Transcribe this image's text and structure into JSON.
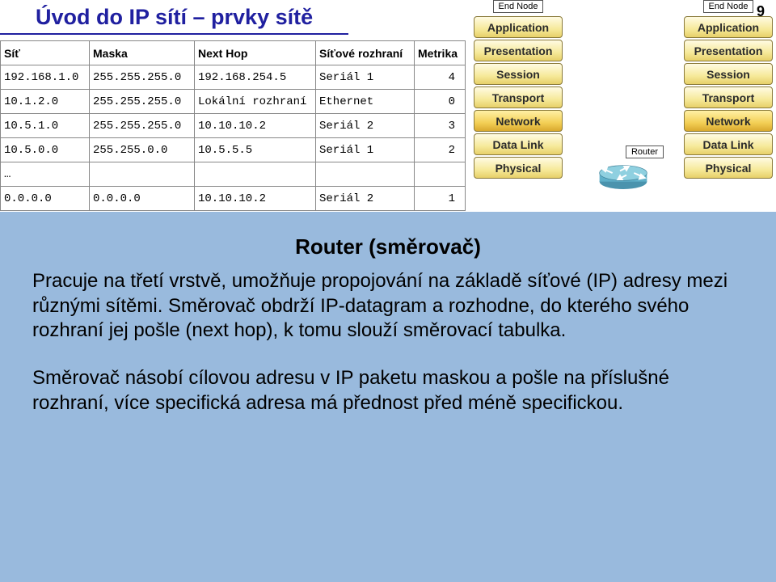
{
  "page": {
    "title": "Úvod do IP sítí – prvky sítě",
    "number": "9"
  },
  "routing_table": {
    "columns": [
      "Síť",
      "Maska",
      "Next Hop",
      "Síťové rozhraní",
      "Metrika"
    ],
    "col_widths": [
      "110px",
      "130px",
      "150px",
      "122px",
      "63px"
    ],
    "rows": [
      [
        "192.168.1.0",
        "255.255.255.0",
        "192.168.254.5",
        "Seriál 1",
        "4"
      ],
      [
        "10.1.2.0",
        "255.255.255.0",
        "Lokální rozhraní",
        "Ethernet",
        "0"
      ],
      [
        "10.5.1.0",
        "255.255.255.0",
        "10.10.10.2",
        "Seriál 2",
        "3"
      ],
      [
        "10.5.0.0",
        "255.255.0.0",
        "10.5.5.5",
        "Seriál 1",
        "2"
      ],
      [
        "…",
        "",
        "",
        "",
        ""
      ],
      [
        "0.0.0.0",
        "0.0.0.0",
        "10.10.10.2",
        "Seriál 2",
        "1"
      ]
    ]
  },
  "osi": {
    "end_node_label": "End Node",
    "router_label": "Router",
    "layers": [
      "Application",
      "Presentation",
      "Session",
      "Transport",
      "Network",
      "Data Link",
      "Physical"
    ],
    "highlight_index": 4,
    "layer_bg": "#f6e99a",
    "layer_highlight_bg": "#f3cf55",
    "layer_border": "#8a7a3a",
    "router_icon_color": "#5fb0c9"
  },
  "bottom": {
    "heading": "Router (směrovač)",
    "para1": "Pracuje na třetí vrstvě, umožňuje propojování na základě síťové (IP) adresy mezi různými sítěmi. Směrovač obdrží IP-datagram a rozhodne, do kterého svého rozhraní jej pošle (next hop), k tomu  slouží směrovací tabulka.",
    "para2": "Směrovač násobí cílovou adresu v IP paketu maskou a pošle na příslušné rozhraní, více  specifická adresa má přednost před méně specifickou.",
    "bg_color": "#99badd"
  }
}
